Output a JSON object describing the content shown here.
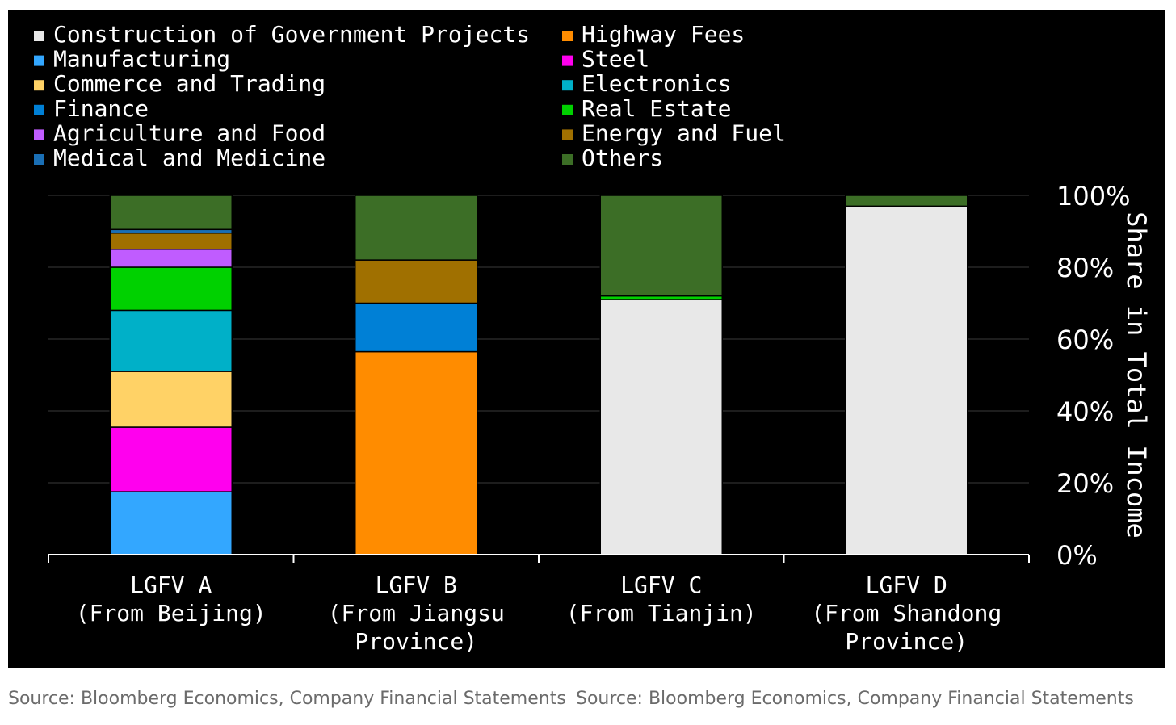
{
  "chart_data": {
    "type": "bar",
    "stacked": true,
    "categories": [
      [
        "LGFV A",
        "(From Beijing)"
      ],
      [
        "LGFV B",
        "(From Jiangsu",
        "Province)"
      ],
      [
        "LGFV C",
        "(From Tianjin)"
      ],
      [
        "LGFV D",
        "(From Shandong",
        "Province)"
      ]
    ],
    "series": [
      {
        "name": "Manufacturing",
        "color": "#33a7ff",
        "values": [
          17.5,
          0,
          0,
          0
        ]
      },
      {
        "name": "Steel",
        "color": "#ff00ee",
        "values": [
          18,
          0,
          0,
          0
        ]
      },
      {
        "name": "Commerce and Trading",
        "color": "#ffd266",
        "values": [
          15.5,
          0,
          0,
          0
        ]
      },
      {
        "name": "Electronics",
        "color": "#00b0c8",
        "values": [
          17,
          0,
          0,
          0
        ]
      },
      {
        "name": "Real Estate",
        "color": "#00d100",
        "values": [
          12,
          0,
          1,
          0
        ]
      },
      {
        "name": "Agriculture and Food",
        "color": "#c05cff",
        "values": [
          5,
          0,
          0,
          0
        ]
      },
      {
        "name": "Energy and Fuel",
        "color": "#a07000",
        "values": [
          4.5,
          12,
          0,
          0
        ]
      },
      {
        "name": "Medical and Medicine",
        "color": "#1a6fb5",
        "values": [
          1,
          0,
          0,
          0
        ]
      },
      {
        "name": "Others",
        "color": "#3c6e26",
        "values": [
          9.5,
          18,
          28,
          3
        ]
      },
      {
        "name": "Highway Fees",
        "color": "#ff8c00",
        "values": [
          0,
          56.5,
          0,
          0
        ]
      },
      {
        "name": "Finance",
        "color": "#0080d6",
        "values": [
          0,
          13.5,
          0,
          0
        ]
      },
      {
        "name": "Construction of Government Projects",
        "color": "#e8e8e8",
        "values": [
          0,
          0,
          71,
          97
        ]
      }
    ],
    "stack_order": [
      [
        "Manufacturing",
        "Steel",
        "Commerce and Trading",
        "Electronics",
        "Real Estate",
        "Agriculture and Food",
        "Energy and Fuel",
        "Medical and Medicine",
        "Others"
      ],
      [
        "Highway Fees",
        "Finance",
        "Energy and Fuel",
        "Others"
      ],
      [
        "Construction of Government Projects",
        "Real Estate",
        "Others"
      ],
      [
        "Construction of Government Projects",
        "Others"
      ]
    ],
    "legend": [
      [
        {
          "name": "Construction of Government Projects",
          "color": "#e8e8e8"
        },
        {
          "name": "Manufacturing",
          "color": "#33a7ff"
        },
        {
          "name": "Commerce and Trading",
          "color": "#ffd266"
        },
        {
          "name": "Finance",
          "color": "#0080d6"
        },
        {
          "name": "Agriculture and Food",
          "color": "#c05cff"
        },
        {
          "name": "Medical and Medicine",
          "color": "#1a6fb5"
        }
      ],
      [
        {
          "name": "Highway Fees",
          "color": "#ff8c00"
        },
        {
          "name": "Steel",
          "color": "#ff00ee"
        },
        {
          "name": "Electronics",
          "color": "#00b0c8"
        },
        {
          "name": "Real Estate",
          "color": "#00d100"
        },
        {
          "name": "Energy and Fuel",
          "color": "#a07000"
        },
        {
          "name": "Others",
          "color": "#3c6e26"
        }
      ]
    ],
    "legend_position": "top",
    "ylabel": "Share in Total Income",
    "yaxis_side": "right",
    "ylim": [
      0,
      100
    ],
    "yticks": [
      0,
      20,
      40,
      60,
      80,
      100
    ],
    "ytick_labels": [
      "0%",
      "20%",
      "40%",
      "60%",
      "80%",
      "100%"
    ],
    "grid": true,
    "background": "#000000"
  },
  "source": {
    "left": "Source: Bloomberg Economics, Company Financial Statements",
    "right": "Source: Bloomberg Economics, Company Financial Statements"
  }
}
